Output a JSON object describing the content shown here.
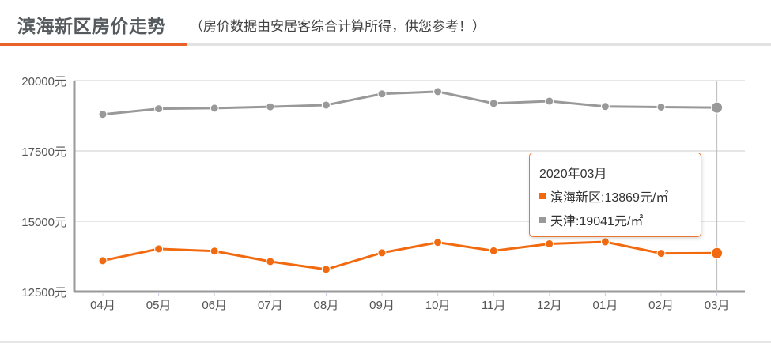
{
  "header": {
    "title": "滨海新区房价走势",
    "subtitle": "（房价数据由安居客综合计算所得，供您参考！）"
  },
  "colors": {
    "accent": "#e8622a",
    "binhai": "#f26a10",
    "tianjin": "#999999",
    "grid": "#dddddd",
    "axis": "#999999"
  },
  "tooltip": {
    "title": "2020年03月",
    "rows": [
      {
        "label": "滨海新区:13869元/㎡",
        "color": "#f26a10"
      },
      {
        "label": "天津:19041元/㎡",
        "color": "#999999"
      }
    ]
  },
  "chart_data": {
    "type": "line",
    "title": "滨海新区房价走势",
    "subtitle": "（房价数据由安居客综合计算所得，供您参考！）",
    "xlabel": "",
    "ylabel": "",
    "categories": [
      "04月",
      "05月",
      "06月",
      "07月",
      "08月",
      "09月",
      "10月",
      "11月",
      "12月",
      "01月",
      "02月",
      "03月"
    ],
    "y_ticks": [
      "12500元",
      "15000元",
      "17500元",
      "20000元"
    ],
    "ylim": [
      12500,
      20000
    ],
    "grid": true,
    "legend": "none (tooltip shows series names)",
    "series": [
      {
        "name": "滨海新区",
        "color": "#f26a10",
        "values": [
          13600,
          14020,
          13940,
          13570,
          13290,
          13880,
          14250,
          13950,
          14200,
          14270,
          13860,
          13869
        ]
      },
      {
        "name": "天津",
        "color": "#999999",
        "values": [
          18800,
          19000,
          19020,
          19070,
          19130,
          19530,
          19610,
          19190,
          19270,
          19080,
          19060,
          19041
        ]
      }
    ],
    "highlighted_index": 11,
    "highlighted_label": "2020年03月"
  }
}
